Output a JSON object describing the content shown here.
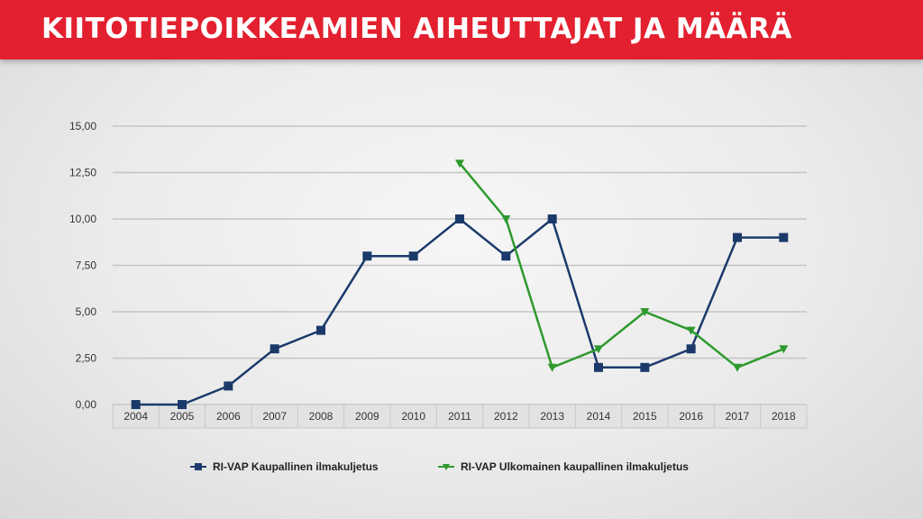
{
  "header": {
    "title": "KIITOTIEPOIKKEAMIEN AIHEUTTAJAT JA MÄÄRÄ",
    "color": "#e3202f"
  },
  "chart_data": {
    "type": "line",
    "x": [
      "2004",
      "2005",
      "2006",
      "2007",
      "2008",
      "2009",
      "2010",
      "2011",
      "2012",
      "2013",
      "2014",
      "2015",
      "2016",
      "2017",
      "2018"
    ],
    "ylim": [
      0,
      15
    ],
    "yticks": [
      "0,00",
      "2,50",
      "5,00",
      "7,50",
      "10,00",
      "12,50",
      "15,00"
    ],
    "grid": true,
    "legend_position": "bottom",
    "series": [
      {
        "name": "RI-VAP Kaupallinen ilmakuljetus",
        "color": "#1b3a6b",
        "marker": "square",
        "values": [
          0,
          0,
          1,
          3,
          4,
          8,
          8,
          10,
          8,
          10,
          2,
          2,
          3,
          9,
          9
        ]
      },
      {
        "name": "RI-VAP Ulkomainen kaupallinen ilmakuljetus",
        "color": "#2e9a2e",
        "marker": "triangle-down",
        "values": [
          null,
          null,
          null,
          null,
          null,
          null,
          null,
          13,
          10,
          2,
          3,
          5,
          4,
          2,
          3
        ]
      }
    ]
  }
}
